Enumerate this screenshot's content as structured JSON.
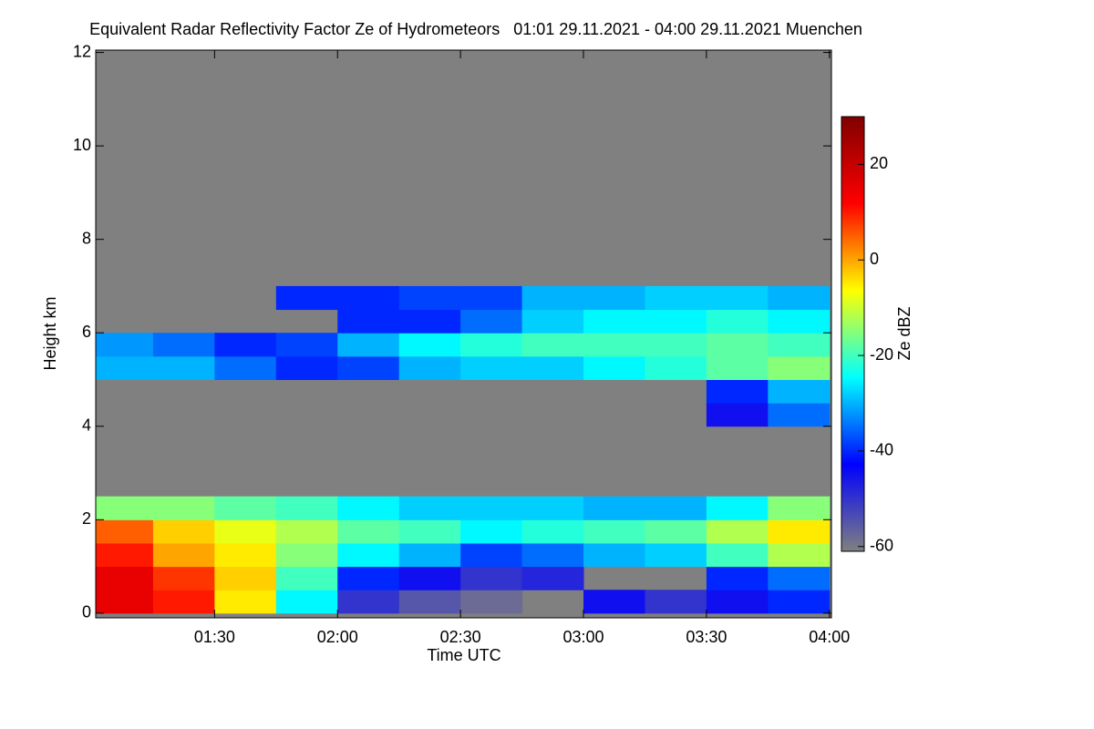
{
  "chart_data": {
    "type": "heatmap",
    "title": "Equivalent Radar Reflectivity Factor Ze of Hydrometeors   01:01 29.11.2021 - 04:00 29.11.2021 Muenchen",
    "xlabel": "Time UTC",
    "ylabel": "Height km",
    "zlabel": "Ze dBZ",
    "xlim": [
      1.0167,
      4.0083
    ],
    "xticks": [
      {
        "value": 1.5,
        "label": "01:30"
      },
      {
        "value": 2.0,
        "label": "02:00"
      },
      {
        "value": 2.5,
        "label": "02:30"
      },
      {
        "value": 3.0,
        "label": "03:00"
      },
      {
        "value": 3.5,
        "label": "03:30"
      },
      {
        "value": 4.0,
        "label": "04:00"
      }
    ],
    "ylim": [
      -0.1,
      12.05
    ],
    "yticks": [
      0,
      2,
      4,
      6,
      8,
      10,
      12
    ],
    "zlim": [
      -61,
      30
    ],
    "zticks": [
      20,
      0,
      -20,
      -40,
      -60
    ],
    "background": "#808080",
    "colormap": [
      "#808080",
      "#0000ff",
      "#00ffff",
      "#ffff00",
      "#ff0000",
      "#800000"
    ],
    "xbins": [
      1.0,
      1.25,
      1.5,
      1.75,
      2.0,
      2.25,
      2.5,
      2.75,
      3.0,
      3.25,
      3.5,
      3.75,
      4.0
    ],
    "ybins": [
      0,
      0.5,
      1,
      1.5,
      2,
      2.5,
      3,
      3.5,
      4,
      4.5,
      5,
      5.5,
      6,
      6.5,
      7
    ],
    "z": [
      [
        15,
        10,
        -5,
        -25,
        -50,
        -55,
        -58,
        null,
        -45,
        -50,
        -45,
        -40
      ],
      [
        15,
        8,
        -3,
        -20,
        -40,
        -45,
        -50,
        -48,
        null,
        null,
        -40,
        -35
      ],
      [
        10,
        0,
        -5,
        -15,
        -25,
        -30,
        -38,
        -35,
        -30,
        -28,
        -20,
        -12
      ],
      [
        5,
        -3,
        -8,
        -12,
        -18,
        -20,
        -25,
        -22,
        -20,
        -18,
        -12,
        -5
      ],
      [
        -15,
        -15,
        -18,
        -20,
        -25,
        -28,
        -28,
        -28,
        -30,
        -30,
        -25,
        -15
      ],
      [
        null,
        null,
        null,
        null,
        null,
        null,
        null,
        null,
        null,
        null,
        null,
        null
      ],
      [
        null,
        null,
        null,
        null,
        null,
        null,
        null,
        null,
        null,
        null,
        null,
        null
      ],
      [
        null,
        null,
        null,
        null,
        null,
        null,
        null,
        null,
        null,
        null,
        null,
        null
      ],
      [
        null,
        null,
        null,
        null,
        null,
        null,
        null,
        null,
        null,
        null,
        -45,
        -35
      ],
      [
        null,
        null,
        null,
        null,
        null,
        null,
        null,
        null,
        null,
        null,
        -40,
        -30
      ],
      [
        -30,
        -30,
        -35,
        -40,
        -38,
        -30,
        -28,
        -28,
        -25,
        -22,
        -18,
        -15
      ],
      [
        -32,
        -35,
        -40,
        -38,
        -30,
        -25,
        -22,
        -20,
        -20,
        -20,
        -18,
        -20
      ],
      [
        null,
        null,
        null,
        null,
        -40,
        -40,
        -35,
        -28,
        -25,
        -25,
        -22,
        -25
      ],
      [
        null,
        null,
        null,
        -40,
        -40,
        -38,
        -38,
        -30,
        -30,
        -28,
        -28,
        -30
      ]
    ]
  }
}
